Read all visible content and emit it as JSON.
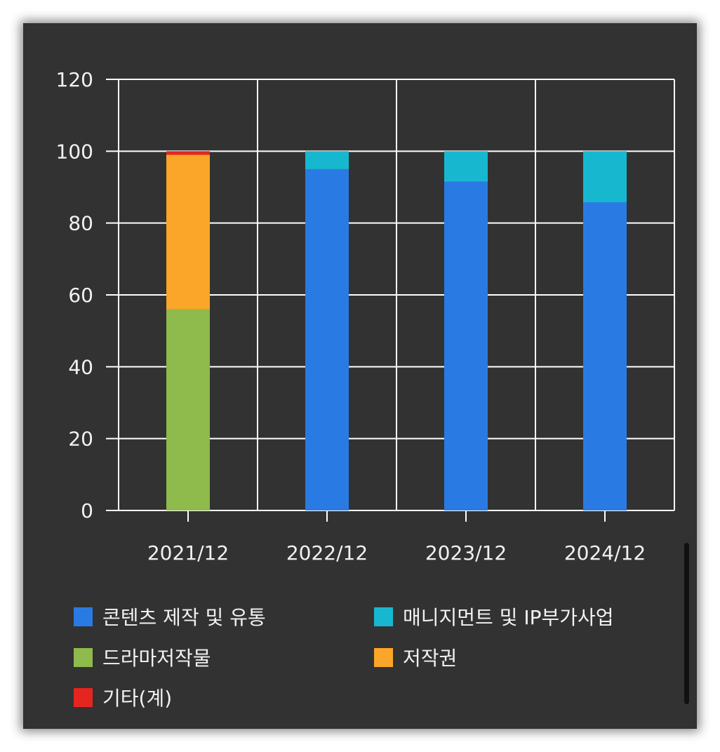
{
  "chart_data": {
    "type": "bar",
    "stacked": true,
    "categories": [
      "2021/12",
      "2022/12",
      "2023/12",
      "2024/12"
    ],
    "y_ticks": [
      "0",
      "20",
      "40",
      "60",
      "80",
      "100",
      "120"
    ],
    "ylim": [
      0,
      120
    ],
    "grid": true,
    "legend_position": "bottom",
    "series": [
      {
        "name": "콘텐츠 제작 및 유통",
        "color": "#2a7ae3",
        "values": [
          0,
          95,
          91.5,
          85.8
        ]
      },
      {
        "name": "매니지먼트 및 IP부가사업",
        "color": "#17b8cf",
        "values": [
          0,
          5,
          8.5,
          14.2
        ]
      },
      {
        "name": "드라마저작물",
        "color": "#8fba4c",
        "values": [
          56,
          0,
          0,
          0
        ]
      },
      {
        "name": "저작권",
        "color": "#fba628",
        "values": [
          43,
          0,
          0,
          0
        ]
      },
      {
        "name": "기타(계)",
        "color": "#e6251f",
        "values": [
          1,
          0,
          0,
          0
        ]
      }
    ]
  }
}
